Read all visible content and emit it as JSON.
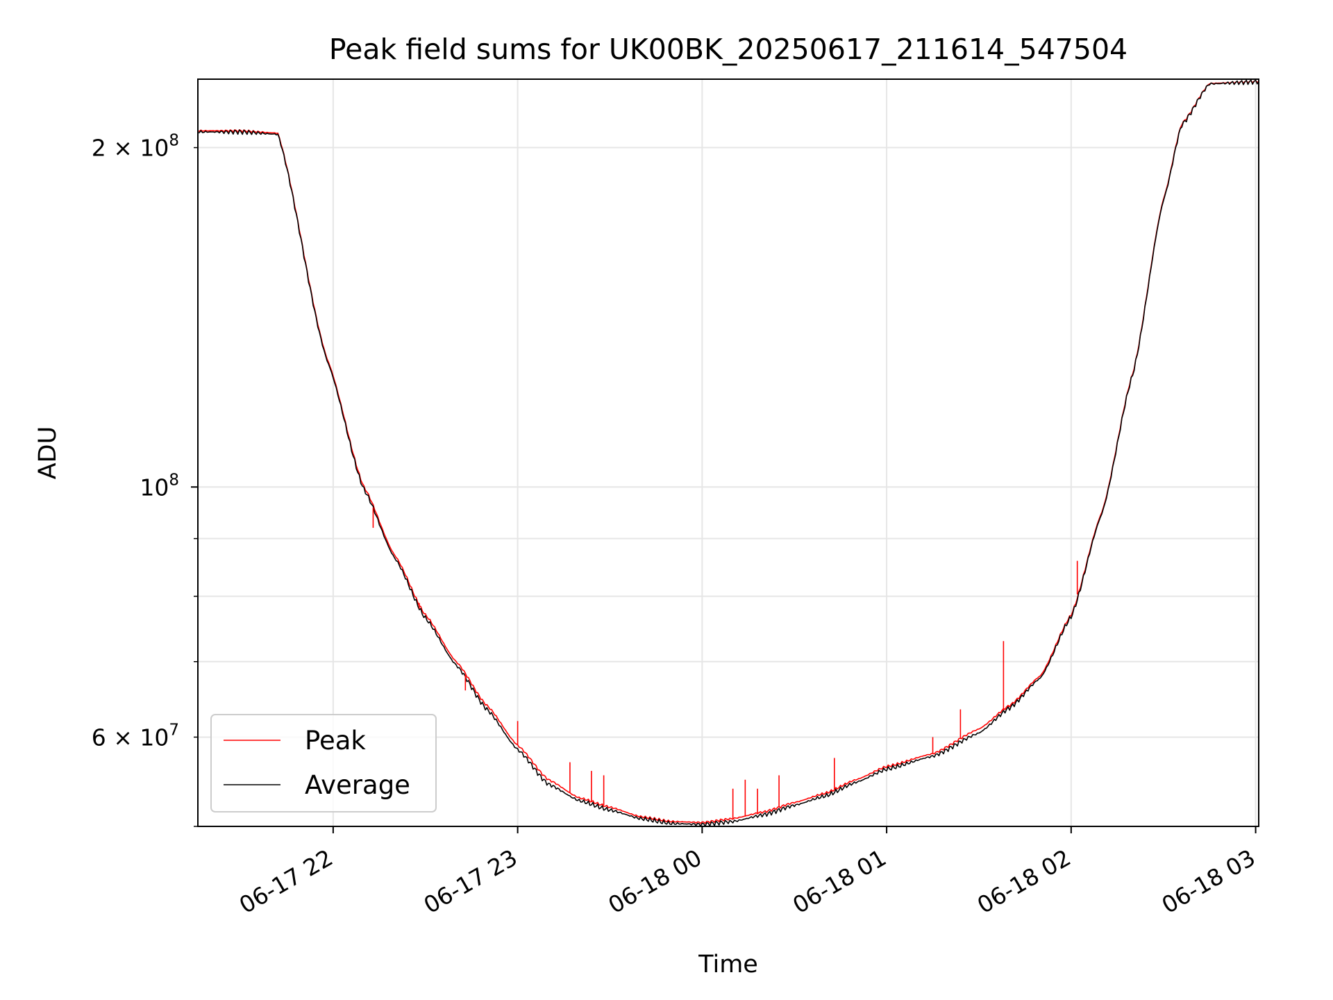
{
  "chart_data": {
    "type": "line",
    "title": "Peak field sums for UK00BK_20250617_211614_547504",
    "xlabel": "Time",
    "ylabel": "ADU",
    "x_format": "MM-DD HH",
    "xlim": [
      "2025-06-17 21:16",
      "2025-06-18 03:01"
    ],
    "xticks": [
      "2025-06-17 22:00",
      "2025-06-17 23:00",
      "2025-06-18 00:00",
      "2025-06-18 01:00",
      "2025-06-18 02:00",
      "2025-06-18 03:00"
    ],
    "xtick_labels": [
      "06-17 22",
      "06-17 23",
      "06-18 00",
      "06-18 01",
      "06-18 02",
      "06-18 03"
    ],
    "y_scale": "log",
    "ylim": [
      50000000,
      230000000
    ],
    "yticks_major": [
      100000000
    ],
    "ytick_major_labels": [
      "10^8"
    ],
    "yticks_minor": [
      50000000,
      60000000,
      70000000,
      80000000,
      90000000,
      200000000
    ],
    "ytick_minor_labels": [
      "",
      "6 × 10^7",
      "",
      "",
      "",
      "2 × 10^8"
    ],
    "grid": true,
    "legend_position": "lower-left",
    "series": [
      {
        "name": "Peak",
        "color": "#ff0000",
        "x": [
          "2025-06-17 21:16",
          "2025-06-17 21:30",
          "2025-06-17 21:42",
          "2025-06-17 21:58",
          "2025-06-17 22:10",
          "2025-06-17 22:20",
          "2025-06-17 22:30",
          "2025-06-17 22:40",
          "2025-06-17 22:50",
          "2025-06-17 23:00",
          "2025-06-17 23:10",
          "2025-06-17 23:20",
          "2025-06-17 23:30",
          "2025-06-17 23:40",
          "2025-06-17 23:50",
          "2025-06-18 00:00",
          "2025-06-18 00:10",
          "2025-06-18 00:20",
          "2025-06-18 00:30",
          "2025-06-18 00:40",
          "2025-06-18 00:50",
          "2025-06-18 01:00",
          "2025-06-18 01:15",
          "2025-06-18 01:30",
          "2025-06-18 01:40",
          "2025-06-18 01:50",
          "2025-06-18 02:00",
          "2025-06-18 02:10",
          "2025-06-18 02:20",
          "2025-06-18 02:30",
          "2025-06-18 02:36",
          "2025-06-18 02:45",
          "2025-06-18 03:01"
        ],
        "y": [
          207000000,
          207000000,
          206000000,
          130000000,
          100000000,
          87000000,
          77000000,
          70000000,
          64000000,
          59000000,
          55000000,
          53000000,
          52000000,
          51000000,
          50500000,
          50400000,
          50800000,
          51500000,
          52500000,
          53500000,
          55000000,
          56500000,
          58000000,
          61000000,
          64000000,
          68000000,
          77000000,
          95000000,
          126000000,
          180000000,
          210000000,
          228000000,
          229000000
        ]
      },
      {
        "name": "Average",
        "color": "#000000",
        "x": [
          "2025-06-17 21:16",
          "2025-06-17 21:30",
          "2025-06-17 21:42",
          "2025-06-17 21:58",
          "2025-06-17 22:10",
          "2025-06-17 22:20",
          "2025-06-17 22:30",
          "2025-06-17 22:40",
          "2025-06-17 22:50",
          "2025-06-17 23:00",
          "2025-06-17 23:10",
          "2025-06-17 23:20",
          "2025-06-17 23:30",
          "2025-06-17 23:40",
          "2025-06-17 23:50",
          "2025-06-18 00:00",
          "2025-06-18 00:10",
          "2025-06-18 00:20",
          "2025-06-18 00:30",
          "2025-06-18 00:40",
          "2025-06-18 00:50",
          "2025-06-18 01:00",
          "2025-06-18 01:15",
          "2025-06-18 01:30",
          "2025-06-18 01:40",
          "2025-06-18 01:50",
          "2025-06-18 02:00",
          "2025-06-18 02:10",
          "2025-06-18 02:20",
          "2025-06-18 02:30",
          "2025-06-18 02:36",
          "2025-06-18 02:45",
          "2025-06-18 03:01"
        ],
        "y": [
          206500000,
          206500000,
          205500000,
          129500000,
          99500000,
          86500000,
          76500000,
          69500000,
          63500000,
          58500000,
          54500000,
          52700000,
          51700000,
          50800000,
          50300000,
          50200000,
          50500000,
          51200000,
          52200000,
          53200000,
          54700000,
          56200000,
          57700000,
          60500000,
          63700000,
          67700000,
          76700000,
          94700000,
          125700000,
          179500000,
          209500000,
          227800000,
          228800000
        ]
      }
    ],
    "peak_spikes": [
      {
        "x": "2025-06-17 22:13",
        "y": 92000000
      },
      {
        "x": "2025-06-17 22:28",
        "y": 78000000
      },
      {
        "x": "2025-06-17 22:43",
        "y": 66000000
      },
      {
        "x": "2025-06-17 23:00",
        "y": 62000000
      },
      {
        "x": "2025-06-17 23:17",
        "y": 57000000
      },
      {
        "x": "2025-06-17 23:24",
        "y": 56000000
      },
      {
        "x": "2025-06-17 23:28",
        "y": 55500000
      },
      {
        "x": "2025-06-18 00:10",
        "y": 54000000
      },
      {
        "x": "2025-06-18 00:14",
        "y": 55000000
      },
      {
        "x": "2025-06-18 00:18",
        "y": 54000000
      },
      {
        "x": "2025-06-18 00:25",
        "y": 55500000
      },
      {
        "x": "2025-06-18 00:43",
        "y": 57500000
      },
      {
        "x": "2025-06-18 01:15",
        "y": 60000000
      },
      {
        "x": "2025-06-18 01:24",
        "y": 63500000
      },
      {
        "x": "2025-06-18 01:38",
        "y": 73000000
      },
      {
        "x": "2025-06-18 02:02",
        "y": 86000000
      }
    ]
  }
}
